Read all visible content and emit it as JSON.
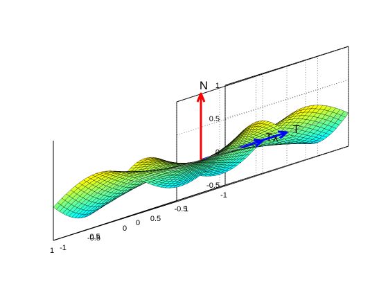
{
  "chart_data": {
    "type": "surface",
    "function": "z = x*y*(x^2 - y^2)/(x^2 + y^2)",
    "grid": true,
    "colormap": "jet",
    "xlim": [
      -1,
      1
    ],
    "ylim": [
      -1,
      1
    ],
    "zlim": [
      -0.5,
      1
    ],
    "x_ticks": [
      "-1",
      "-0.5",
      "0",
      "0.5",
      "1"
    ],
    "y_ticks": [
      "-1",
      "-0.5",
      "0",
      "0.5",
      "1"
    ],
    "z_ticks": [
      "-0.5",
      "0",
      "0.5",
      "1"
    ],
    "tangent_plane_z": 0,
    "vectors": [
      {
        "label": "N",
        "color": "#ff0000",
        "from": [
          0,
          0,
          0
        ],
        "to": [
          0,
          0,
          1
        ]
      },
      {
        "label": "Tx",
        "color": "#0000ff",
        "from": [
          0,
          0,
          0
        ],
        "to": [
          0,
          1,
          0
        ]
      },
      {
        "label": "T",
        "color": "#0000ff",
        "from": [
          0,
          0,
          0
        ],
        "to": [
          -1,
          0,
          0
        ]
      }
    ]
  }
}
